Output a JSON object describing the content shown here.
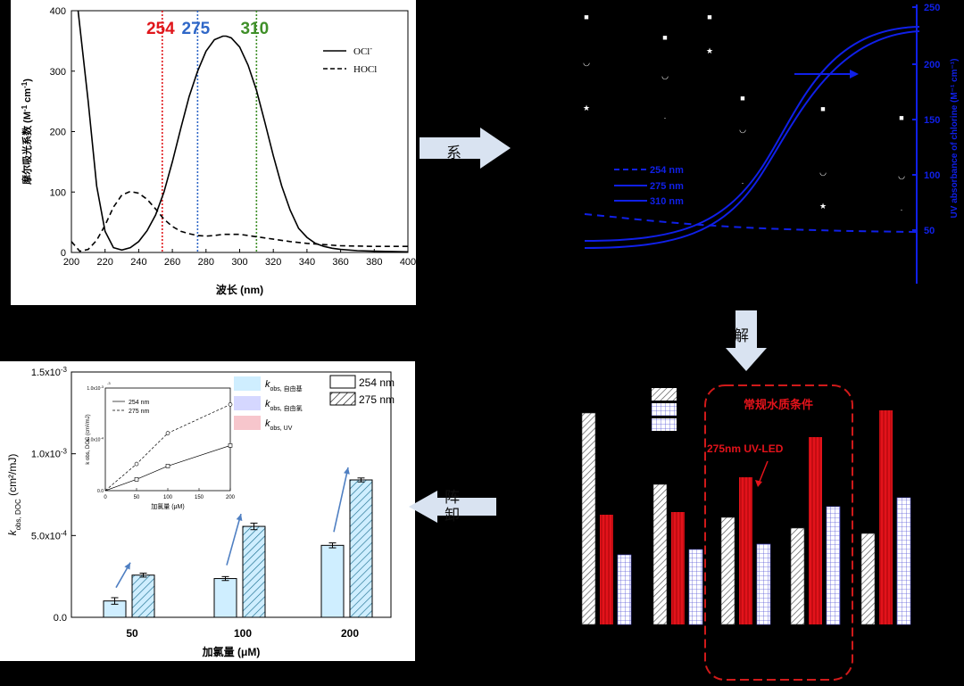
{
  "chart_data": [
    {
      "type": "line",
      "xlabel": "波长 (nm)",
      "ylabel_main": "摩尔吸光系数 (M",
      "ylabel_sup1": "-1",
      "ylabel_mid": " cm",
      "ylabel_sup2": "-1",
      "ylabel_end": ")",
      "xlim": [
        200,
        400
      ],
      "ylim": [
        0,
        400
      ],
      "x_ticks": [
        "200",
        "220",
        "240",
        "260",
        "280",
        "300",
        "320",
        "340",
        "360",
        "380",
        "400"
      ],
      "y_ticks": [
        "0",
        "100",
        "200",
        "300",
        "400"
      ],
      "markers": [
        {
          "value": 254,
          "label": "254",
          "color": "#e0161b"
        },
        {
          "value": 275,
          "label": "275",
          "color": "#2f67c7"
        },
        {
          "value": 310,
          "label": "310",
          "color": "#3f8f28"
        }
      ],
      "legend": [
        {
          "label": "OCl",
          "sup": "-",
          "style": "solid"
        },
        {
          "label": "HOCl",
          "sup": "",
          "style": "dashed"
        }
      ],
      "series": [
        {
          "name": "OCl-",
          "style": "solid",
          "x": [
            204,
            210,
            215,
            220,
            225,
            230,
            235,
            240,
            245,
            250,
            255,
            260,
            265,
            270,
            275,
            280,
            285,
            290,
            292,
            295,
            300,
            305,
            310,
            315,
            320,
            325,
            330,
            335,
            340,
            345,
            350,
            355,
            360,
            370,
            380,
            400
          ],
          "y": [
            400,
            250,
            110,
            35,
            8,
            4,
            8,
            18,
            36,
            62,
            100,
            150,
            205,
            258,
            300,
            333,
            352,
            358,
            358,
            355,
            340,
            310,
            268,
            215,
            160,
            110,
            70,
            40,
            25,
            15,
            10,
            7,
            5,
            3,
            2,
            1
          ]
        },
        {
          "name": "HOCl",
          "style": "dashed",
          "x": [
            200,
            205,
            210,
            215,
            220,
            225,
            230,
            235,
            240,
            245,
            250,
            255,
            260,
            265,
            270,
            275,
            280,
            285,
            290,
            295,
            300,
            305,
            310,
            320,
            330,
            340,
            350,
            360,
            380,
            400
          ],
          "y": [
            18,
            2,
            5,
            20,
            45,
            75,
            95,
            101,
            98,
            88,
            72,
            55,
            43,
            35,
            31,
            28,
            27,
            28,
            30,
            30,
            30,
            28,
            26,
            22,
            18,
            15,
            13,
            11,
            10,
            10
          ]
        }
      ]
    },
    {
      "type": "line",
      "right_axis_label": "UV absorbance of chlorine (M⁻¹ cm⁻¹)",
      "right_ticks": [
        "250",
        "200",
        "150",
        "100",
        "50"
      ],
      "legend": [
        {
          "label": "254 nm",
          "style": "dashed"
        },
        {
          "label": "275 nm",
          "style": "solid"
        },
        {
          "label": "310 nm",
          "style": "solid"
        }
      ]
    },
    {
      "type": "bar",
      "annotation_title": "常规水质条件",
      "annotation_label": "275nm UV-LED",
      "values": [
        {
          "hatched": 237,
          "red": 123,
          "blue": 78
        },
        {
          "hatched": 157,
          "red": 126,
          "blue": 84
        },
        {
          "hatched": 120,
          "red": 165,
          "blue": 90
        },
        {
          "hatched": 108,
          "red": 210,
          "blue": 132
        },
        {
          "hatched": 102,
          "red": 240,
          "blue": 142
        }
      ],
      "legend_swatches": [
        "hatch-diagonal",
        "hatch-grid",
        "hatch-dense"
      ]
    },
    {
      "type": "bar",
      "xlabel": "加氯量 (μM)",
      "ylabel_k": "k",
      "ylabel_sub": "obs, DOC",
      "ylabel_unit": " (cm²/mJ)",
      "categories": [
        "50",
        "100",
        "200"
      ],
      "y_ticks": [
        "0.0",
        "5.0x10",
        "1.0x10",
        "1.5x10"
      ],
      "y_tick_exp": [
        "",
        "-4",
        "-3",
        "-3"
      ],
      "ylim": [
        0,
        0.0015
      ],
      "series": [
        {
          "name": "254 nm",
          "values": [
            0.0001,
            0.000237,
            0.00044
          ],
          "errors": [
            2e-05,
            1.2e-05,
            1.5e-05
          ]
        },
        {
          "name": "275 nm",
          "values": [
            0.000258,
            0.000556,
            0.00084
          ],
          "errors": [
            1.2e-05,
            2e-05,
            1.2e-05
          ]
        }
      ],
      "legend_right": [
        "254 nm",
        "275 nm"
      ],
      "legend_left": [
        {
          "k": "k",
          "sub": "obs, 自由基",
          "color": "#cfeeff"
        },
        {
          "k": "k",
          "sub": "obs, 自由氯",
          "color": "#d5d7ff"
        },
        {
          "k": "k",
          "sub": "obs, UV",
          "color": "#f7c6cc"
        }
      ],
      "inset": {
        "xlabel": "加氯量 (μM)",
        "ylabel": "k obs, DOC (cm²/mJ)",
        "x_ticks": [
          "0",
          "50",
          "100",
          "150",
          "200"
        ],
        "y_tick_labels": [
          "0.0",
          "5.0x10",
          "1.0x10"
        ],
        "y_tick_exp": [
          "",
          "-4",
          "-3"
        ],
        "top_exp": "-3",
        "series": [
          {
            "name": "254 nm",
            "style": "solid",
            "marker": "square",
            "x": [
              50,
              100,
              200
            ],
            "y": [
              0.00011,
              0.00024,
              0.00044
            ]
          },
          {
            "name": "275 nm",
            "style": "dashed",
            "marker": "circle",
            "x": [
              50,
              100,
              200
            ],
            "y": [
              0.00026,
              0.00056,
              0.00084
            ]
          }
        ]
      }
    }
  ],
  "arrows": {
    "top": "系",
    "right": "解",
    "bottom": "阵\n卸"
  }
}
